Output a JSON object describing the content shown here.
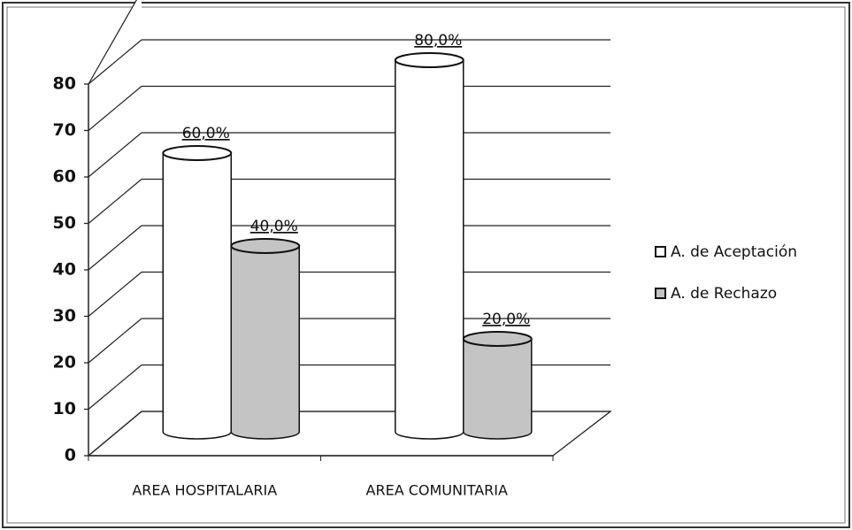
{
  "chart_data": {
    "type": "bar3d",
    "categories": [
      "AREA HOSPITALARIA",
      "AREA COMUNITARIA"
    ],
    "series": [
      {
        "name": "A. de Aceptación",
        "color": "#ffffff",
        "values": [
          60,
          80
        ],
        "value_labels": [
          "60,0%",
          "80,0%"
        ]
      },
      {
        "name": "A. de Rechazo",
        "color": "#c4c4c4",
        "values": [
          40,
          20
        ],
        "value_labels": [
          "40,0%",
          "20,0%"
        ]
      }
    ],
    "ylim": [
      0,
      80
    ],
    "yticks": [
      0,
      10,
      20,
      30,
      40,
      50,
      60,
      70,
      80
    ],
    "grid": true,
    "legend": "right"
  }
}
